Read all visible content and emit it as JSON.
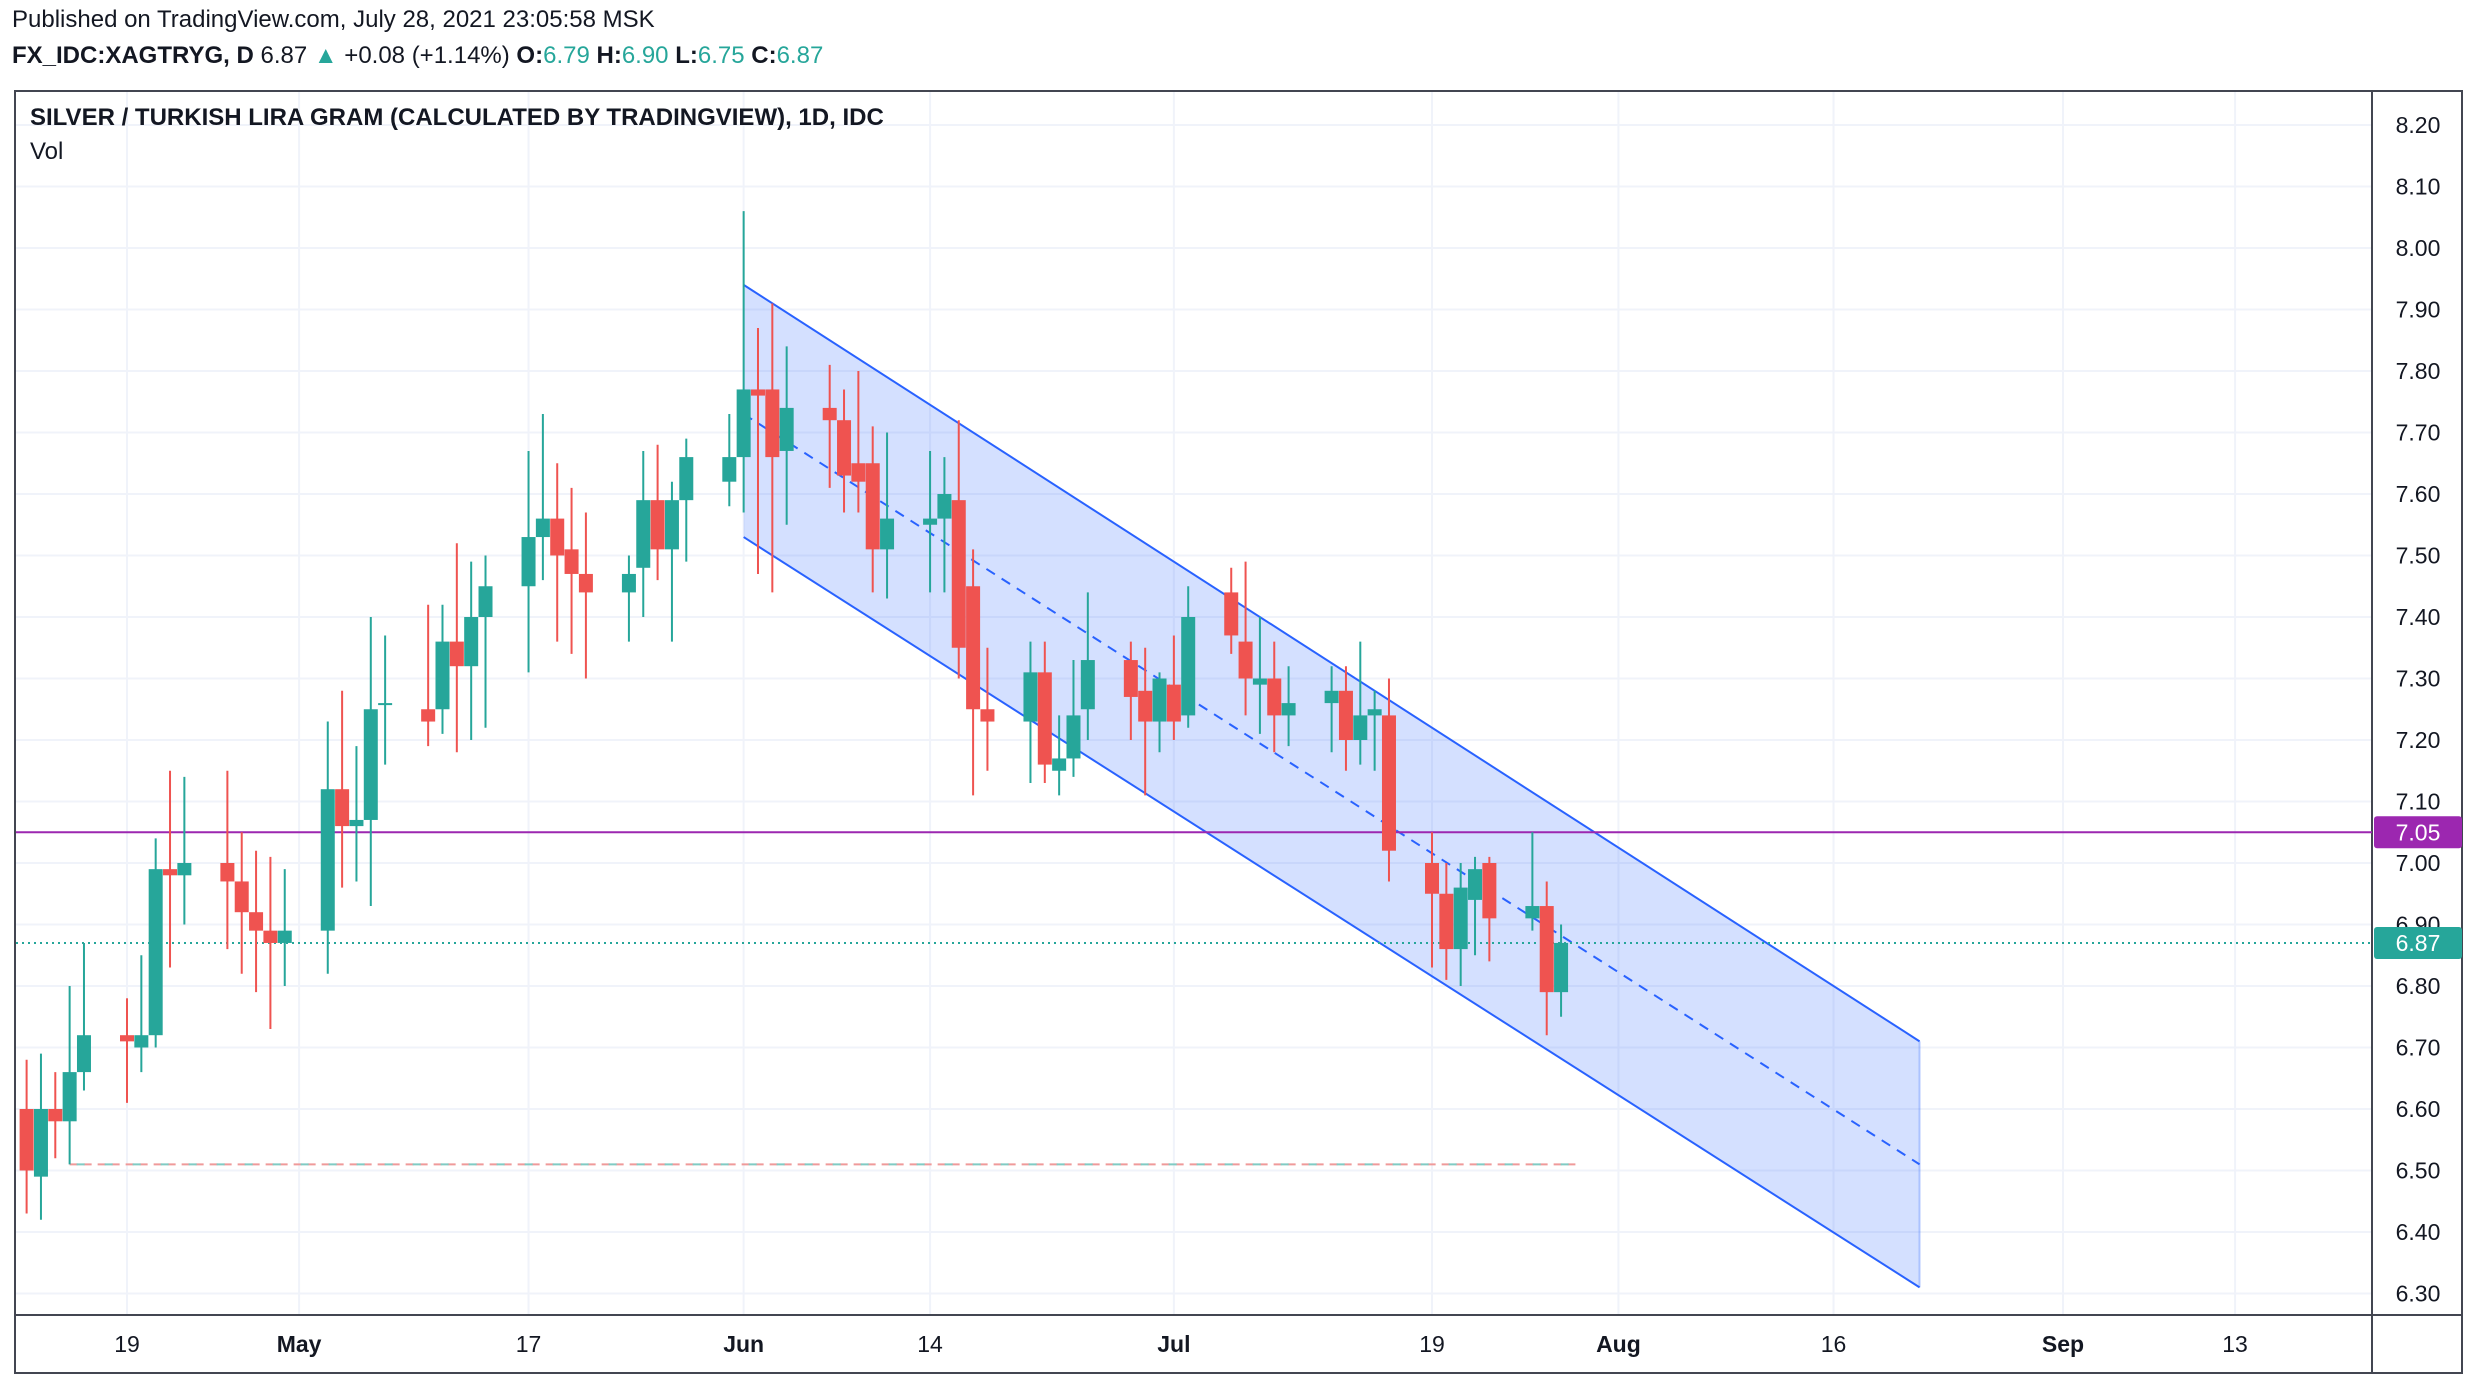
{
  "header": {
    "published": "Published on TradingView.com, July 28, 2021 23:05:58 MSK",
    "symbol": "FX_IDC:XAGTRYG, D",
    "last": "6.87",
    "change_arrow": "▲",
    "change": "+0.08 (+1.14%)",
    "o_label": "O:",
    "o_value": "6.79",
    "h_label": "H:",
    "h_value": "6.90",
    "l_label": "L:",
    "l_value": "6.75",
    "c_label": "C:",
    "c_value": "6.87"
  },
  "chart_data": {
    "type": "candlestick",
    "title": "SILVER / TURKISH LIRA GRAM (CALCULATED BY TRADINGVIEW), 1D, IDC",
    "subtitle": "Vol",
    "x_ticks": [
      "19",
      "May",
      "17",
      "Jun",
      "14",
      "Jul",
      "19",
      "Aug",
      "16",
      "Sep",
      "13"
    ],
    "y_ticks": [
      "6.30",
      "6.40",
      "6.50",
      "6.60",
      "6.70",
      "6.80",
      "6.90",
      "7.00",
      "7.10",
      "7.20",
      "7.30",
      "7.40",
      "7.50",
      "7.60",
      "7.70",
      "7.80",
      "7.90",
      "8.00",
      "8.10",
      "8.20"
    ],
    "ylim": [
      6.27,
      8.24
    ],
    "grid": true,
    "colors": {
      "up": "#26a69a",
      "down": "#ef5350",
      "channel": "#2962ff",
      "channel_fill": "#2962ff33",
      "hline": "#9c27b0",
      "last": "#26a69a"
    },
    "candles": [
      {
        "date": "2021-04-12",
        "o": 6.6,
        "h": 6.68,
        "l": 6.43,
        "c": 6.5
      },
      {
        "date": "2021-04-13",
        "o": 6.49,
        "h": 6.69,
        "l": 6.42,
        "c": 6.6
      },
      {
        "date": "2021-04-14",
        "o": 6.6,
        "h": 6.66,
        "l": 6.52,
        "c": 6.58
      },
      {
        "date": "2021-04-15",
        "o": 6.58,
        "h": 6.8,
        "l": 6.51,
        "c": 6.66
      },
      {
        "date": "2021-04-16",
        "o": 6.66,
        "h": 6.87,
        "l": 6.63,
        "c": 6.72
      },
      {
        "date": "2021-04-19",
        "o": 6.72,
        "h": 6.78,
        "l": 6.61,
        "c": 6.71
      },
      {
        "date": "2021-04-20",
        "o": 6.7,
        "h": 6.85,
        "l": 6.66,
        "c": 6.72
      },
      {
        "date": "2021-04-21",
        "o": 6.72,
        "h": 7.04,
        "l": 6.7,
        "c": 6.99
      },
      {
        "date": "2021-04-22",
        "o": 6.99,
        "h": 7.15,
        "l": 6.83,
        "c": 6.98
      },
      {
        "date": "2021-04-23",
        "o": 6.98,
        "h": 7.14,
        "l": 6.9,
        "c": 7.0
      },
      {
        "date": "2021-04-26",
        "o": 7.0,
        "h": 7.15,
        "l": 6.86,
        "c": 6.97
      },
      {
        "date": "2021-04-27",
        "o": 6.97,
        "h": 7.05,
        "l": 6.82,
        "c": 6.92
      },
      {
        "date": "2021-04-28",
        "o": 6.92,
        "h": 7.02,
        "l": 6.79,
        "c": 6.89
      },
      {
        "date": "2021-04-29",
        "o": 6.89,
        "h": 7.01,
        "l": 6.73,
        "c": 6.87
      },
      {
        "date": "2021-04-30",
        "o": 6.87,
        "h": 6.99,
        "l": 6.8,
        "c": 6.89
      },
      {
        "date": "2021-05-03",
        "o": 6.89,
        "h": 7.23,
        "l": 6.82,
        "c": 7.12
      },
      {
        "date": "2021-05-04",
        "o": 7.12,
        "h": 7.28,
        "l": 6.96,
        "c": 7.06
      },
      {
        "date": "2021-05-05",
        "o": 7.06,
        "h": 7.19,
        "l": 6.97,
        "c": 7.07
      },
      {
        "date": "2021-05-06",
        "o": 7.07,
        "h": 7.4,
        "l": 6.93,
        "c": 7.25
      },
      {
        "date": "2021-05-07",
        "o": 7.26,
        "h": 7.37,
        "l": 7.16,
        "c": 7.26
      },
      {
        "date": "2021-05-10",
        "o": 7.25,
        "h": 7.42,
        "l": 7.19,
        "c": 7.23
      },
      {
        "date": "2021-05-11",
        "o": 7.25,
        "h": 7.42,
        "l": 7.21,
        "c": 7.36
      },
      {
        "date": "2021-05-12",
        "o": 7.36,
        "h": 7.52,
        "l": 7.18,
        "c": 7.32
      },
      {
        "date": "2021-05-13",
        "o": 7.32,
        "h": 7.49,
        "l": 7.2,
        "c": 7.4
      },
      {
        "date": "2021-05-14",
        "o": 7.4,
        "h": 7.5,
        "l": 7.22,
        "c": 7.45
      },
      {
        "date": "2021-05-17",
        "o": 7.45,
        "h": 7.67,
        "l": 7.31,
        "c": 7.53
      },
      {
        "date": "2021-05-18",
        "o": 7.53,
        "h": 7.73,
        "l": 7.46,
        "c": 7.56
      },
      {
        "date": "2021-05-19",
        "o": 7.56,
        "h": 7.65,
        "l": 7.36,
        "c": 7.5
      },
      {
        "date": "2021-05-20",
        "o": 7.51,
        "h": 7.61,
        "l": 7.34,
        "c": 7.47
      },
      {
        "date": "2021-05-21",
        "o": 7.47,
        "h": 7.57,
        "l": 7.3,
        "c": 7.44
      },
      {
        "date": "2021-05-24",
        "o": 7.44,
        "h": 7.5,
        "l": 7.36,
        "c": 7.47
      },
      {
        "date": "2021-05-25",
        "o": 7.48,
        "h": 7.67,
        "l": 7.4,
        "c": 7.59
      },
      {
        "date": "2021-05-26",
        "o": 7.59,
        "h": 7.68,
        "l": 7.46,
        "c": 7.51
      },
      {
        "date": "2021-05-27",
        "o": 7.51,
        "h": 7.62,
        "l": 7.36,
        "c": 7.59
      },
      {
        "date": "2021-05-28",
        "o": 7.59,
        "h": 7.69,
        "l": 7.49,
        "c": 7.66
      },
      {
        "date": "2021-05-31",
        "o": 7.62,
        "h": 7.73,
        "l": 7.58,
        "c": 7.66
      },
      {
        "date": "2021-06-01",
        "o": 7.66,
        "h": 8.06,
        "l": 7.57,
        "c": 7.77
      },
      {
        "date": "2021-06-02",
        "o": 7.77,
        "h": 7.87,
        "l": 7.47,
        "c": 7.76
      },
      {
        "date": "2021-06-03",
        "o": 7.77,
        "h": 7.91,
        "l": 7.44,
        "c": 7.66
      },
      {
        "date": "2021-06-04",
        "o": 7.67,
        "h": 7.84,
        "l": 7.55,
        "c": 7.74
      },
      {
        "date": "2021-06-07",
        "o": 7.74,
        "h": 7.81,
        "l": 7.61,
        "c": 7.72
      },
      {
        "date": "2021-06-08",
        "o": 7.72,
        "h": 7.77,
        "l": 7.57,
        "c": 7.63
      },
      {
        "date": "2021-06-09",
        "o": 7.65,
        "h": 7.8,
        "l": 7.57,
        "c": 7.62
      },
      {
        "date": "2021-06-10",
        "o": 7.65,
        "h": 7.71,
        "l": 7.44,
        "c": 7.51
      },
      {
        "date": "2021-06-11",
        "o": 7.51,
        "h": 7.7,
        "l": 7.43,
        "c": 7.56
      },
      {
        "date": "2021-06-14",
        "o": 7.55,
        "h": 7.67,
        "l": 7.44,
        "c": 7.56
      },
      {
        "date": "2021-06-15",
        "o": 7.56,
        "h": 7.66,
        "l": 7.44,
        "c": 7.6
      },
      {
        "date": "2021-06-16",
        "o": 7.59,
        "h": 7.72,
        "l": 7.3,
        "c": 7.35
      },
      {
        "date": "2021-06-17",
        "o": 7.45,
        "h": 7.51,
        "l": 7.11,
        "c": 7.25
      },
      {
        "date": "2021-06-18",
        "o": 7.25,
        "h": 7.35,
        "l": 7.15,
        "c": 7.23
      },
      {
        "date": "2021-06-21",
        "o": 7.23,
        "h": 7.36,
        "l": 7.13,
        "c": 7.31
      },
      {
        "date": "2021-06-22",
        "o": 7.31,
        "h": 7.36,
        "l": 7.13,
        "c": 7.16
      },
      {
        "date": "2021-06-23",
        "o": 7.15,
        "h": 7.24,
        "l": 7.11,
        "c": 7.17
      },
      {
        "date": "2021-06-24",
        "o": 7.17,
        "h": 7.33,
        "l": 7.14,
        "c": 7.24
      },
      {
        "date": "2021-06-25",
        "o": 7.25,
        "h": 7.44,
        "l": 7.2,
        "c": 7.33
      },
      {
        "date": "2021-06-28",
        "o": 7.33,
        "h": 7.36,
        "l": 7.2,
        "c": 7.27
      },
      {
        "date": "2021-06-29",
        "o": 7.28,
        "h": 7.35,
        "l": 7.11,
        "c": 7.23
      },
      {
        "date": "2021-06-30",
        "o": 7.23,
        "h": 7.31,
        "l": 7.18,
        "c": 7.3
      },
      {
        "date": "2021-07-01",
        "o": 7.29,
        "h": 7.37,
        "l": 7.2,
        "c": 7.23
      },
      {
        "date": "2021-07-02",
        "o": 7.24,
        "h": 7.45,
        "l": 7.22,
        "c": 7.4
      },
      {
        "date": "2021-07-05",
        "o": 7.44,
        "h": 7.48,
        "l": 7.34,
        "c": 7.37
      },
      {
        "date": "2021-07-06",
        "o": 7.36,
        "h": 7.49,
        "l": 7.24,
        "c": 7.3
      },
      {
        "date": "2021-07-07",
        "o": 7.29,
        "h": 7.4,
        "l": 7.21,
        "c": 7.3
      },
      {
        "date": "2021-07-08",
        "o": 7.3,
        "h": 7.36,
        "l": 7.18,
        "c": 7.24
      },
      {
        "date": "2021-07-09",
        "o": 7.24,
        "h": 7.32,
        "l": 7.19,
        "c": 7.26
      },
      {
        "date": "2021-07-12",
        "o": 7.26,
        "h": 7.32,
        "l": 7.18,
        "c": 7.28
      },
      {
        "date": "2021-07-13",
        "o": 7.28,
        "h": 7.32,
        "l": 7.15,
        "c": 7.2
      },
      {
        "date": "2021-07-14",
        "o": 7.2,
        "h": 7.36,
        "l": 7.16,
        "c": 7.24
      },
      {
        "date": "2021-07-15",
        "o": 7.24,
        "h": 7.28,
        "l": 7.15,
        "c": 7.25
      },
      {
        "date": "2021-07-16",
        "o": 7.24,
        "h": 7.3,
        "l": 6.97,
        "c": 7.02
      },
      {
        "date": "2021-07-19",
        "o": 7.0,
        "h": 7.05,
        "l": 6.83,
        "c": 6.95
      },
      {
        "date": "2021-07-20",
        "o": 6.95,
        "h": 7.0,
        "l": 6.81,
        "c": 6.86
      },
      {
        "date": "2021-07-21",
        "o": 6.86,
        "h": 7.0,
        "l": 6.8,
        "c": 6.96
      },
      {
        "date": "2021-07-22",
        "o": 6.94,
        "h": 7.01,
        "l": 6.85,
        "c": 6.99
      },
      {
        "date": "2021-07-23",
        "o": 7.0,
        "h": 7.01,
        "l": 6.84,
        "c": 6.91
      },
      {
        "date": "2021-07-26",
        "o": 6.91,
        "h": 7.05,
        "l": 6.89,
        "c": 6.93
      },
      {
        "date": "2021-07-27",
        "o": 6.93,
        "h": 6.97,
        "l": 6.72,
        "c": 6.79
      },
      {
        "date": "2021-07-28",
        "o": 6.79,
        "h": 6.9,
        "l": 6.75,
        "c": 6.87
      }
    ],
    "channel": {
      "upper": [
        {
          "date": "2021-06-01",
          "y": 7.94
        },
        {
          "date": "2021-08-22",
          "y": 6.71
        }
      ],
      "mid": [
        {
          "date": "2021-06-01",
          "y": 7.73
        },
        {
          "date": "2021-08-22",
          "y": 6.51
        }
      ],
      "lower": [
        {
          "date": "2021-06-01",
          "y": 7.53
        },
        {
          "date": "2021-08-22",
          "y": 6.31
        }
      ]
    },
    "volume_profile_line": {
      "from": "2021-04-15",
      "to": "2021-07-29",
      "y": 6.51
    },
    "hline": {
      "y": 7.05,
      "label": "7.05"
    },
    "last_price": {
      "y": 6.87,
      "label": "6.87"
    }
  }
}
